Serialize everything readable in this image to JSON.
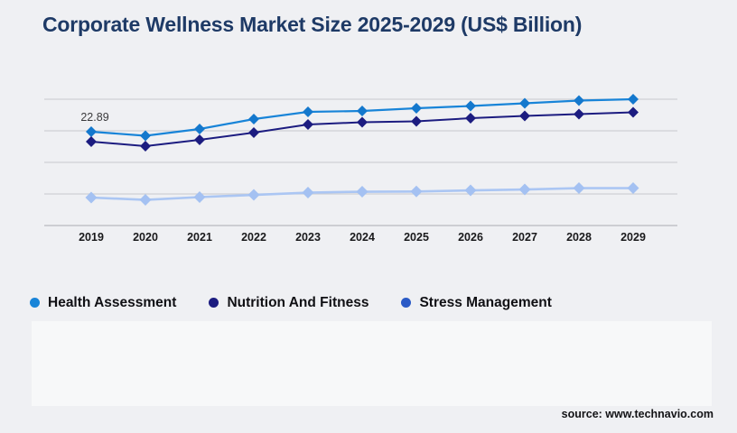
{
  "page": {
    "title": "Corporate Wellness Market Size 2025-2029 (US$ Billion)",
    "source": "source: www.technavio.com"
  },
  "chart_data": {
    "type": "line",
    "title": "Corporate Wellness Market Size 2025-2029 (US$ Billion)",
    "categories": [
      "2019",
      "2020",
      "2021",
      "2022",
      "2023",
      "2024",
      "2025",
      "2026",
      "2027",
      "2028",
      "2029"
    ],
    "series": [
      {
        "name": "Health Assessment",
        "color": "#1884d8",
        "marker_color": "#1478cd",
        "marker": "diamond",
        "values": [
          22.89,
          21.9,
          23.55,
          25.97,
          27.73,
          27.95,
          28.61,
          29.16,
          29.82,
          30.48,
          30.81
        ]
      },
      {
        "name": "Nutrition And Fitness",
        "color": "#1c1c80",
        "marker_color": "#1c1c80",
        "marker": "diamond",
        "values": [
          20.47,
          19.37,
          20.91,
          22.67,
          24.65,
          25.2,
          25.42,
          26.19,
          26.74,
          27.18,
          27.62
        ]
      },
      {
        "name": "Stress Management",
        "color": "#abc6f3",
        "marker_color": "#a4c1f2",
        "legend_color": "#2a5ac6",
        "marker": "diamond",
        "values": [
          6.82,
          6.27,
          6.93,
          7.48,
          8.03,
          8.25,
          8.3,
          8.58,
          8.8,
          9.13,
          9.13
        ]
      }
    ],
    "annotations": [
      {
        "series": "Health Assessment",
        "category": "2019",
        "text": "22.89"
      }
    ],
    "xlabel": "",
    "ylabel": "",
    "ylim": [
      0,
      38.5
    ],
    "grid": "horizontal",
    "y_axis_labels": false,
    "legend_position": "bottom-left"
  }
}
